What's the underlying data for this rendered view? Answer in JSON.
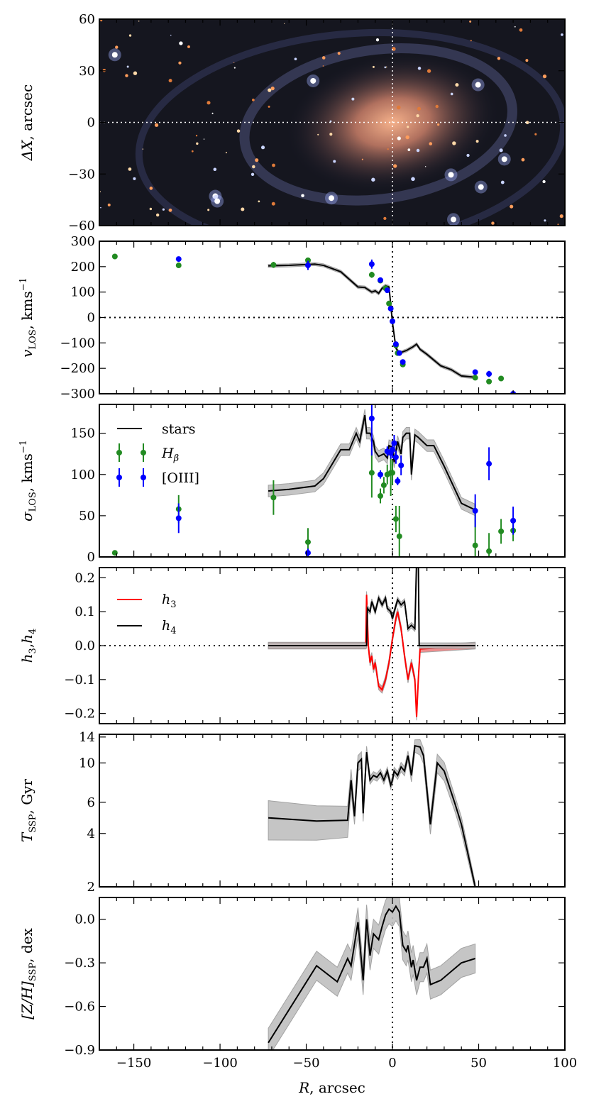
{
  "chart_data": [
    {
      "type": "image",
      "ylabel": {
        "main": "ΔX",
        "rest": ", arcsec"
      },
      "ylim": [
        -60,
        60
      ],
      "yticks": [
        "60",
        "30",
        "0",
        "−30",
        "−60"
      ],
      "ytick_values": [
        60,
        30,
        0,
        -30,
        -60
      ]
    },
    {
      "type": "scatter+line",
      "ylabel": {
        "main": "v",
        "sub": "LOS",
        "rest": ", kms",
        "sup": "−1"
      },
      "ylim": [
        -300,
        300
      ],
      "yticks": [
        "300",
        "200",
        "100",
        "0",
        "−100",
        "−200",
        "−300"
      ],
      "ytick_values": [
        300,
        200,
        100,
        0,
        -100,
        -200,
        -300
      ],
      "stars": {
        "x": [
          -72,
          -60,
          -45,
          -40,
          -30,
          -25,
          -20,
          -16,
          -12,
          -10,
          -8,
          -6,
          -4,
          -2,
          -1,
          0,
          2,
          4,
          8,
          12,
          14,
          16,
          20,
          28,
          34,
          40,
          48
        ],
        "y": [
          203,
          205,
          210,
          205,
          180,
          150,
          120,
          118,
          100,
          105,
          95,
          115,
          125,
          120,
          50,
          -20,
          -120,
          -140,
          -130,
          -115,
          -105,
          -125,
          -145,
          -190,
          -205,
          -230,
          -235
        ],
        "err": 6
      },
      "hbeta": {
        "x": [
          -161,
          -124,
          -69,
          -49,
          -12,
          -7,
          -4,
          -2,
          2,
          3,
          6,
          48,
          56,
          63
        ],
        "y": [
          240,
          205,
          207,
          225,
          168,
          145,
          115,
          55,
          -110,
          -140,
          -185,
          -237,
          -252,
          -240
        ],
        "err": [
          10,
          10,
          12,
          8,
          12,
          6,
          6,
          6,
          6,
          6,
          10,
          6,
          6,
          6
        ]
      },
      "oiii": {
        "x": [
          -124,
          -49,
          -12,
          -7,
          -3,
          -1,
          0,
          2,
          4,
          6,
          48,
          56,
          70
        ],
        "y": [
          230,
          205,
          210,
          147,
          107,
          35,
          -15,
          -105,
          -140,
          -175,
          -215,
          -222,
          -300
        ],
        "err": [
          10,
          18,
          18,
          6,
          6,
          6,
          6,
          6,
          6,
          10,
          10,
          12,
          6
        ]
      }
    },
    {
      "type": "scatter+line",
      "ylabel": {
        "main": "σ",
        "sub": "LOS",
        "rest": ", kms",
        "sup": "−1"
      },
      "ylim": [
        0,
        185
      ],
      "yticks": [
        "0",
        "50",
        "100",
        "150"
      ],
      "ytick_values": [
        0,
        50,
        100,
        150
      ],
      "legend": {
        "stars": "stars",
        "hbeta_main": "H",
        "hbeta_sub": "β",
        "oiii": "[OIII]",
        "placement": "upper-left"
      },
      "stars": {
        "x": [
          -72,
          -60,
          -45,
          -40,
          -30,
          -25,
          -21,
          -19,
          -16,
          -15,
          -13,
          -11,
          -10,
          -8,
          -5,
          -3,
          -2,
          0,
          1,
          3,
          5,
          6,
          8,
          10,
          11,
          13,
          15,
          20,
          24,
          30,
          40,
          48
        ],
        "y": [
          80,
          82,
          86,
          95,
          130,
          130,
          150,
          140,
          172,
          150,
          150,
          140,
          128,
          122,
          125,
          120,
          135,
          133,
          115,
          140,
          125,
          145,
          150,
          150,
          100,
          148,
          145,
          135,
          135,
          110,
          65,
          57
        ],
        "err": 7
      },
      "hbeta": {
        "x": [
          -161,
          -124,
          -69,
          -49,
          -12,
          -7,
          -5,
          -3,
          -1,
          0,
          2,
          4,
          48,
          56,
          63,
          70
        ],
        "y": [
          5,
          58,
          72,
          18,
          102,
          74,
          87,
          100,
          102,
          102,
          46,
          25,
          14,
          7,
          31,
          32
        ],
        "err": [
          0,
          17,
          21,
          17,
          30,
          9,
          10,
          12,
          28,
          15,
          16,
          37,
          50,
          22,
          15,
          13
        ]
      },
      "oiii": {
        "x": [
          -124,
          -49,
          -12,
          -7,
          -3,
          -1,
          0,
          1,
          2,
          3,
          5,
          48,
          56,
          70
        ],
        "y": [
          47,
          5,
          168,
          100,
          128,
          126,
          130,
          138,
          121,
          92,
          111,
          56,
          113,
          44
        ],
        "err": [
          18,
          5,
          45,
          5,
          6,
          7,
          10,
          10,
          8,
          5,
          12,
          20,
          20,
          17
        ]
      }
    },
    {
      "type": "line",
      "ylabel": {
        "main": "h",
        "sub": "3",
        "rest": ",",
        "main2": "h",
        "sub2": "4"
      },
      "ylim": [
        -0.23,
        0.23
      ],
      "yticks": [
        "0.2",
        "0.1",
        "0.0",
        "−0.1",
        "−0.2"
      ],
      "ytick_values": [
        0.2,
        0.1,
        0.0,
        -0.1,
        -0.2
      ],
      "legend": {
        "h3_main": "h",
        "h3_sub": "3",
        "h4_main": "h",
        "h4_sub": "4",
        "placement": "upper-left"
      },
      "h3": {
        "x": [
          -72,
          -15.5,
          -15,
          -14,
          -13,
          -12,
          -11,
          -10,
          -8,
          -6,
          -4,
          -2,
          0,
          2,
          3,
          5,
          7,
          9,
          11,
          13,
          14,
          15,
          16,
          48
        ],
        "y": [
          0,
          0,
          0.15,
          0,
          -0.05,
          -0.03,
          -0.07,
          -0.05,
          -0.12,
          -0.13,
          -0.1,
          -0.05,
          0.02,
          0.08,
          0.1,
          0.05,
          -0.03,
          -0.1,
          -0.05,
          -0.1,
          -0.21,
          -0.1,
          -0.01,
          0
        ],
        "err": 0.01
      },
      "h4": {
        "x": [
          -72,
          -15,
          -14.5,
          -13,
          -12,
          -10,
          -8,
          -6,
          -4,
          -3,
          -1,
          0,
          1,
          3,
          5,
          7,
          9,
          11,
          13,
          14,
          15,
          15.5,
          48
        ],
        "y": [
          0,
          0,
          0.11,
          0.1,
          0.13,
          0.1,
          0.14,
          0.12,
          0.14,
          0.11,
          0.1,
          0.08,
          0.1,
          0.135,
          0.12,
          0.13,
          0.05,
          0.06,
          0.05,
          0.25,
          0.25,
          0,
          0
        ],
        "err": 0.008
      }
    },
    {
      "type": "line",
      "yscale": "log",
      "ylabel": {
        "main": "T",
        "sub": "SSP",
        "rest": ", Gyr"
      },
      "ylim": [
        2,
        14.5
      ],
      "yticks": [
        "2",
        "4",
        "6",
        "10",
        "14"
      ],
      "ytick_values": [
        2,
        4,
        6,
        10,
        14
      ],
      "x": [
        -72,
        -44,
        -26,
        -24,
        -22,
        -20,
        -18,
        -17,
        -15,
        -13,
        -11,
        -9,
        -7,
        -5,
        -3,
        -1,
        0,
        1,
        3,
        5,
        7,
        9,
        11,
        13,
        16,
        18,
        22,
        26,
        30,
        36,
        40,
        48
      ],
      "y": [
        4.9,
        4.7,
        4.75,
        8,
        5,
        10,
        10.5,
        5.2,
        11.5,
        8,
        8.5,
        8.3,
        8.8,
        8,
        9,
        7.5,
        8,
        9,
        8.5,
        9.5,
        9,
        11,
        8.5,
        12.5,
        12.3,
        11,
        4.5,
        10,
        9,
        6,
        4.5,
        2
      ],
      "rel_err": [
        0.25,
        0.22,
        0.2,
        0.15,
        0.1,
        0.1,
        0.1,
        0.1,
        0.08,
        0.05,
        0.05,
        0.05,
        0.05,
        0.05,
        0.05,
        0.05,
        0.05,
        0.05,
        0.05,
        0.06,
        0.06,
        0.06,
        0.08,
        0.08,
        0.1,
        0.1,
        0.12,
        0.12,
        0.12,
        0.1,
        0.1,
        0.05
      ]
    },
    {
      "type": "line",
      "ylabel": {
        "main": "[Z/H]",
        "sub": "SSP",
        "rest": ", dex"
      },
      "ylim": [
        -0.9,
        0.15
      ],
      "yticks": [
        "0.0",
        "−0.3",
        "−0.6",
        "−0.9"
      ],
      "ytick_values": [
        0.0,
        -0.3,
        -0.6,
        -0.9
      ],
      "x": [
        -72,
        -44,
        -32,
        -26,
        -24,
        -20,
        -17,
        -15,
        -13,
        -11,
        -8,
        -6,
        -4,
        -2,
        0,
        2,
        4,
        6,
        8,
        9,
        11,
        12,
        14,
        16,
        18,
        20,
        22,
        28,
        40,
        48
      ],
      "y": [
        -0.85,
        -0.32,
        -0.43,
        -0.27,
        -0.32,
        -0.02,
        -0.42,
        0.0,
        -0.25,
        -0.1,
        -0.14,
        -0.05,
        0.03,
        0.07,
        0.05,
        0.09,
        0.05,
        -0.18,
        -0.22,
        -0.18,
        -0.33,
        -0.28,
        -0.42,
        -0.33,
        -0.33,
        -0.27,
        -0.45,
        -0.42,
        -0.3,
        -0.27
      ],
      "err": 0.1,
      "xlabel": {
        "main": "R",
        "rest": ", arcsec"
      },
      "xlim": [
        -170,
        100
      ],
      "xticks": [
        "−150",
        "−100",
        "−50",
        "0",
        "50",
        "100"
      ],
      "xtick_values": [
        -150,
        -100,
        -50,
        0,
        50,
        100
      ]
    }
  ],
  "colors": {
    "hbeta": "#228b22",
    "oiii": "#0000ff",
    "h3": "#ff0000",
    "stars": "#000000",
    "band": "#bfbfbf"
  }
}
